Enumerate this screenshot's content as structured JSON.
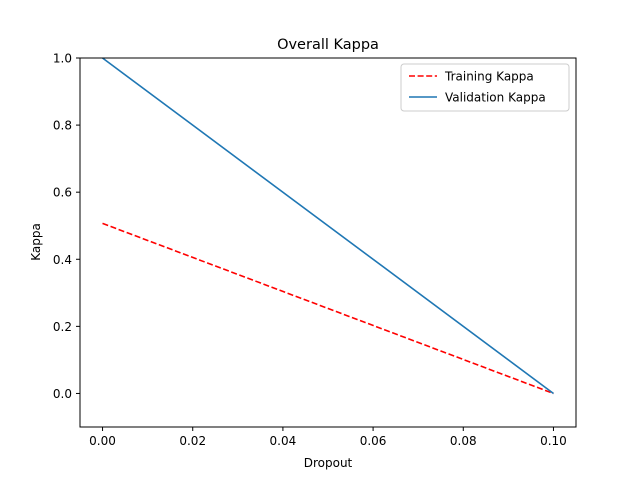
{
  "chart_data": {
    "type": "line",
    "title": "Overall Kappa",
    "xlabel": "Dropout",
    "ylabel": "Kappa",
    "xlim": [
      -0.005,
      0.105
    ],
    "ylim": [
      -0.1,
      1.0
    ],
    "xticks": [
      0.0,
      0.02,
      0.04,
      0.06,
      0.08,
      0.1
    ],
    "xtick_labels": [
      "0.00",
      "0.02",
      "0.04",
      "0.06",
      "0.08",
      "0.10"
    ],
    "yticks": [
      0.0,
      0.2,
      0.4,
      0.6,
      0.8,
      1.0
    ],
    "ytick_labels": [
      "0.0",
      "0.2",
      "0.4",
      "0.6",
      "0.8",
      "1.0"
    ],
    "grid": false,
    "legend_position": "top-right",
    "series": [
      {
        "name": "Training Kappa",
        "color": "#ff0000",
        "style": "dashed",
        "x": [
          0.0,
          0.1
        ],
        "y": [
          0.507,
          0.0
        ]
      },
      {
        "name": "Validation Kappa",
        "color": "#1f77b4",
        "style": "solid",
        "x": [
          0.0,
          0.1
        ],
        "y": [
          1.0,
          0.0
        ]
      }
    ]
  }
}
